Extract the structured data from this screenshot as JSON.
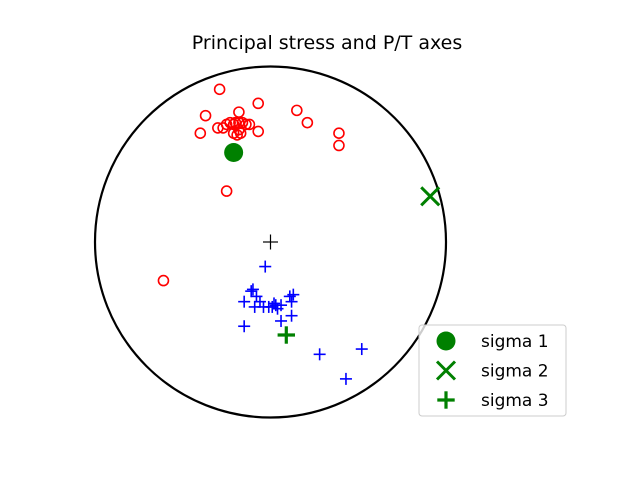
{
  "chart_data": {
    "type": "scatter",
    "projection": "stereonet",
    "title": "Principal stress and P/T axes",
    "grid": false,
    "legend_position": "lower-right",
    "net_center_symbol": "+",
    "colors": {
      "p_axes": "#ff0000",
      "t_axes": "#0000ff",
      "sigma": "#008000",
      "net": "#000000",
      "center": "#000000"
    },
    "series": [
      {
        "marker": "open-circle",
        "points": [
          [
            -0.29,
            0.87
          ],
          [
            -0.37,
            0.72
          ],
          [
            -0.4,
            0.62
          ],
          [
            -0.3,
            0.65
          ],
          [
            -0.27,
            0.65
          ],
          [
            -0.25,
            0.67
          ],
          [
            -0.23,
            0.68
          ],
          [
            -0.21,
            0.67
          ],
          [
            -0.2,
            0.68
          ],
          [
            -0.18,
            0.68
          ],
          [
            -0.16,
            0.68
          ],
          [
            -0.14,
            0.67
          ],
          [
            -0.12,
            0.67
          ],
          [
            -0.18,
            0.64
          ],
          [
            -0.21,
            0.62
          ],
          [
            -0.19,
            0.61
          ],
          [
            -0.17,
            0.62
          ],
          [
            -0.18,
            0.74
          ],
          [
            -0.07,
            0.79
          ],
          [
            -0.07,
            0.63
          ],
          [
            0.15,
            0.75
          ],
          [
            0.21,
            0.68
          ],
          [
            0.39,
            0.62
          ],
          [
            0.39,
            0.55
          ],
          [
            -0.25,
            0.29
          ],
          [
            -0.61,
            -0.22
          ]
        ]
      },
      {
        "marker": "plus",
        "points": [
          [
            -0.03,
            -0.14
          ],
          [
            -0.1,
            -0.27
          ],
          [
            -0.11,
            -0.28
          ],
          [
            -0.08,
            -0.31
          ],
          [
            -0.06,
            -0.34
          ],
          [
            -0.04,
            -0.37
          ],
          [
            -0.01,
            -0.37
          ],
          [
            0.01,
            -0.37
          ],
          [
            0.02,
            -0.35
          ],
          [
            0.03,
            -0.36
          ],
          [
            0.04,
            -0.38
          ],
          [
            0.06,
            -0.36
          ],
          [
            0.11,
            -0.31
          ],
          [
            0.13,
            -0.3
          ],
          [
            0.12,
            -0.34
          ],
          [
            0.12,
            -0.42
          ],
          [
            0.06,
            -0.45
          ],
          [
            -0.15,
            -0.34
          ],
          [
            -0.15,
            -0.48
          ],
          [
            -0.09,
            -0.37
          ],
          [
            0.28,
            -0.64
          ],
          [
            0.52,
            -0.61
          ],
          [
            0.43,
            -0.78
          ]
        ]
      },
      {
        "name": "sigma 1",
        "marker": "filled-circle",
        "points": [
          [
            -0.21,
            0.51
          ]
        ]
      },
      {
        "name": "sigma 2",
        "marker": "x",
        "points": [
          [
            0.91,
            0.26
          ]
        ]
      },
      {
        "name": "sigma 3",
        "marker": "plus",
        "points": [
          [
            0.09,
            -0.53
          ]
        ]
      }
    ],
    "legend": [
      "sigma 1",
      "sigma 2",
      "sigma 3"
    ]
  }
}
